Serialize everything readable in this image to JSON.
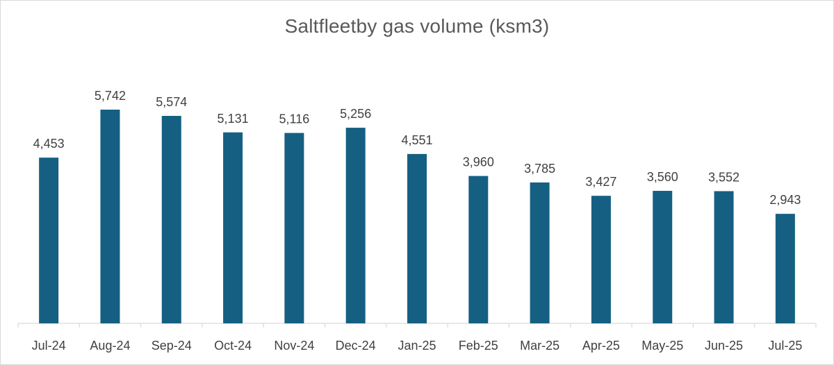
{
  "chart_data": {
    "type": "bar",
    "title": "Saltfleetby gas volume (ksm3)",
    "xlabel": "",
    "ylabel": "",
    "categories": [
      "Jul-24",
      "Aug-24",
      "Sep-24",
      "Oct-24",
      "Nov-24",
      "Dec-24",
      "Jan-25",
      "Feb-25",
      "Mar-25",
      "Apr-25",
      "May-25",
      "Jun-25",
      "Jul-25"
    ],
    "values": [
      4453,
      5742,
      5574,
      5131,
      5116,
      5256,
      4551,
      3960,
      3785,
      3427,
      3560,
      3552,
      2943
    ],
    "data_labels": [
      "4,453",
      "5,742",
      "5,574",
      "5,131",
      "5,116",
      "5,256",
      "4,551",
      "3,960",
      "3,785",
      "3,427",
      "3,560",
      "3,552",
      "2,943"
    ],
    "ylim": [
      0,
      5742
    ],
    "grid": false,
    "legend": "none",
    "colors": {
      "bar": "#156082",
      "axis": "#d9d9d9",
      "text": "#404040",
      "title": "#595959"
    }
  }
}
